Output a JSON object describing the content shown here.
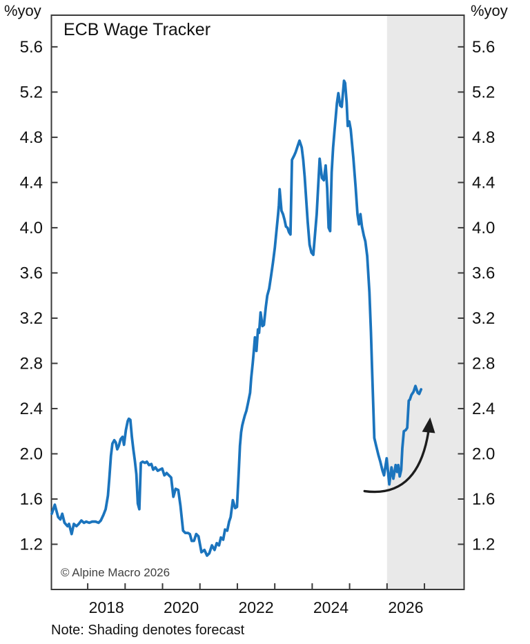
{
  "chart": {
    "y_unit_left": "%yoy",
    "y_unit_right": "%yoy",
    "title": "ECB Wage Tracker",
    "copyright": "© Alpine Macro 2026",
    "note": "Note: Shading denotes forecast",
    "colors": {
      "line": "#1b74bd",
      "forecast_shading": "#e9e9e9",
      "axis": "#3a3a3a",
      "tick_text": "#111111",
      "arrow": "#1d1d1d"
    }
  },
  "chart_data": {
    "type": "line",
    "title": "ECB Wage Tracker",
    "ylabel": "%yoy",
    "legend": "none",
    "grid": false,
    "xlim": [
      2017.03,
      2028.06
    ],
    "ylim": [
      0.8,
      5.88
    ],
    "yticks": [
      1.2,
      1.6,
      2.0,
      2.4,
      2.8,
      3.2,
      3.6,
      4.0,
      4.4,
      4.8,
      5.2,
      5.6
    ],
    "ytick_labels": [
      "1.2",
      "1.6",
      "2.0",
      "2.4",
      "2.8",
      "3.2",
      "3.6",
      "4.0",
      "4.4",
      "4.8",
      "5.2",
      "5.6"
    ],
    "xticks": [
      2018,
      2019,
      2020,
      2021,
      2022,
      2023,
      2024,
      2025,
      2026,
      2027
    ],
    "xtick_labels": [
      {
        "pos": 2018.5,
        "label": "2018"
      },
      {
        "pos": 2020.5,
        "label": "2020"
      },
      {
        "pos": 2022.5,
        "label": "2022"
      },
      {
        "pos": 2024.5,
        "label": "2024"
      },
      {
        "pos": 2026.5,
        "label": "2026"
      }
    ],
    "forecast_shading_start": 2026.0,
    "series": [
      {
        "name": "ECB Wage Tracker",
        "color": "#1b74bd",
        "points": [
          [
            2017.04,
            1.47
          ],
          [
            2017.12,
            1.55
          ],
          [
            2017.21,
            1.44
          ],
          [
            2017.27,
            1.42
          ],
          [
            2017.32,
            1.47
          ],
          [
            2017.38,
            1.39
          ],
          [
            2017.46,
            1.36
          ],
          [
            2017.5,
            1.38
          ],
          [
            2017.57,
            1.29
          ],
          [
            2017.63,
            1.38
          ],
          [
            2017.7,
            1.36
          ],
          [
            2017.76,
            1.38
          ],
          [
            2017.83,
            1.41
          ],
          [
            2017.9,
            1.39
          ],
          [
            2017.96,
            1.4
          ],
          [
            2018.04,
            1.39
          ],
          [
            2018.12,
            1.4
          ],
          [
            2018.21,
            1.4
          ],
          [
            2018.29,
            1.39
          ],
          [
            2018.35,
            1.41
          ],
          [
            2018.42,
            1.46
          ],
          [
            2018.48,
            1.51
          ],
          [
            2018.54,
            1.63
          ],
          [
            2018.58,
            1.79
          ],
          [
            2018.62,
            1.98
          ],
          [
            2018.66,
            2.09
          ],
          [
            2018.71,
            2.12
          ],
          [
            2018.75,
            2.1
          ],
          [
            2018.79,
            2.04
          ],
          [
            2018.83,
            2.07
          ],
          [
            2018.88,
            2.13
          ],
          [
            2018.93,
            2.15
          ],
          [
            2018.97,
            2.08
          ],
          [
            2019.02,
            2.21
          ],
          [
            2019.07,
            2.29
          ],
          [
            2019.1,
            2.31
          ],
          [
            2019.14,
            2.3
          ],
          [
            2019.18,
            2.15
          ],
          [
            2019.22,
            2.04
          ],
          [
            2019.26,
            1.94
          ],
          [
            2019.3,
            1.82
          ],
          [
            2019.34,
            1.56
          ],
          [
            2019.38,
            1.51
          ],
          [
            2019.42,
            1.92
          ],
          [
            2019.47,
            1.93
          ],
          [
            2019.53,
            1.92
          ],
          [
            2019.58,
            1.93
          ],
          [
            2019.64,
            1.9
          ],
          [
            2019.7,
            1.91
          ],
          [
            2019.75,
            1.86
          ],
          [
            2019.81,
            1.88
          ],
          [
            2019.87,
            1.85
          ],
          [
            2019.93,
            1.86
          ],
          [
            2019.99,
            1.87
          ],
          [
            2020.05,
            1.81
          ],
          [
            2020.11,
            1.83
          ],
          [
            2020.17,
            1.81
          ],
          [
            2020.23,
            1.79
          ],
          [
            2020.29,
            1.62
          ],
          [
            2020.35,
            1.69
          ],
          [
            2020.42,
            1.68
          ],
          [
            2020.48,
            1.54
          ],
          [
            2020.55,
            1.32
          ],
          [
            2020.61,
            1.3
          ],
          [
            2020.68,
            1.3
          ],
          [
            2020.73,
            1.29
          ],
          [
            2020.78,
            1.23
          ],
          [
            2020.84,
            1.23
          ],
          [
            2020.9,
            1.29
          ],
          [
            2020.96,
            1.27
          ],
          [
            2021.04,
            1.13
          ],
          [
            2021.12,
            1.15
          ],
          [
            2021.19,
            1.1
          ],
          [
            2021.25,
            1.12
          ],
          [
            2021.32,
            1.19
          ],
          [
            2021.39,
            1.15
          ],
          [
            2021.45,
            1.21
          ],
          [
            2021.51,
            1.19
          ],
          [
            2021.56,
            1.26
          ],
          [
            2021.62,
            1.24
          ],
          [
            2021.67,
            1.33
          ],
          [
            2021.73,
            1.32
          ],
          [
            2021.78,
            1.4
          ],
          [
            2021.82,
            1.44
          ],
          [
            2021.88,
            1.59
          ],
          [
            2021.94,
            1.52
          ],
          [
            2021.99,
            1.53
          ],
          [
            2022.04,
            1.86
          ],
          [
            2022.07,
            2.07
          ],
          [
            2022.1,
            2.19
          ],
          [
            2022.13,
            2.25
          ],
          [
            2022.16,
            2.29
          ],
          [
            2022.2,
            2.34
          ],
          [
            2022.24,
            2.38
          ],
          [
            2022.28,
            2.44
          ],
          [
            2022.34,
            2.54
          ],
          [
            2022.37,
            2.67
          ],
          [
            2022.41,
            2.8
          ],
          [
            2022.44,
            2.91
          ],
          [
            2022.47,
            3.03
          ],
          [
            2022.51,
            2.91
          ],
          [
            2022.55,
            3.1
          ],
          [
            2022.58,
            3.07
          ],
          [
            2022.62,
            3.25
          ],
          [
            2022.67,
            3.13
          ],
          [
            2022.71,
            3.14
          ],
          [
            2022.76,
            3.3
          ],
          [
            2022.8,
            3.4
          ],
          [
            2022.85,
            3.46
          ],
          [
            2022.9,
            3.57
          ],
          [
            2022.95,
            3.69
          ],
          [
            2023.0,
            3.82
          ],
          [
            2023.03,
            3.92
          ],
          [
            2023.06,
            4.02
          ],
          [
            2023.09,
            4.12
          ],
          [
            2023.11,
            4.2
          ],
          [
            2023.13,
            4.34
          ],
          [
            2023.18,
            4.15
          ],
          [
            2023.22,
            4.12
          ],
          [
            2023.26,
            4.07
          ],
          [
            2023.3,
            4.01
          ],
          [
            2023.34,
            4.0
          ],
          [
            2023.38,
            3.96
          ],
          [
            2023.42,
            3.94
          ],
          [
            2023.46,
            4.6
          ],
          [
            2023.52,
            4.64
          ],
          [
            2023.56,
            4.67
          ],
          [
            2023.61,
            4.72
          ],
          [
            2023.66,
            4.77
          ],
          [
            2023.72,
            4.71
          ],
          [
            2023.76,
            4.6
          ],
          [
            2023.8,
            4.45
          ],
          [
            2023.84,
            4.25
          ],
          [
            2023.88,
            4.05
          ],
          [
            2023.93,
            3.85
          ],
          [
            2023.98,
            3.78
          ],
          [
            2024.03,
            3.76
          ],
          [
            2024.12,
            4.12
          ],
          [
            2024.2,
            4.61
          ],
          [
            2024.26,
            4.44
          ],
          [
            2024.31,
            4.42
          ],
          [
            2024.36,
            4.55
          ],
          [
            2024.4,
            4.35
          ],
          [
            2024.44,
            4.0
          ],
          [
            2024.48,
            3.97
          ],
          [
            2024.52,
            4.49
          ],
          [
            2024.56,
            4.71
          ],
          [
            2024.6,
            4.87
          ],
          [
            2024.63,
            4.98
          ],
          [
            2024.66,
            5.1
          ],
          [
            2024.7,
            5.19
          ],
          [
            2024.75,
            5.08
          ],
          [
            2024.79,
            5.07
          ],
          [
            2024.85,
            5.3
          ],
          [
            2024.88,
            5.28
          ],
          [
            2024.92,
            5.11
          ],
          [
            2024.95,
            4.9
          ],
          [
            2024.99,
            4.94
          ],
          [
            2025.03,
            4.87
          ],
          [
            2025.1,
            4.62
          ],
          [
            2025.16,
            4.36
          ],
          [
            2025.21,
            4.12
          ],
          [
            2025.25,
            4.03
          ],
          [
            2025.29,
            4.12
          ],
          [
            2025.33,
            4.01
          ],
          [
            2025.38,
            3.93
          ],
          [
            2025.42,
            3.88
          ],
          [
            2025.47,
            3.75
          ],
          [
            2025.53,
            3.43
          ],
          [
            2025.57,
            3.08
          ],
          [
            2025.6,
            2.76
          ],
          [
            2025.66,
            2.14
          ],
          [
            2025.71,
            2.07
          ],
          [
            2025.77,
            1.99
          ],
          [
            2025.82,
            1.93
          ],
          [
            2025.88,
            1.85
          ],
          [
            2025.92,
            1.81
          ],
          [
            2025.99,
            1.96
          ],
          [
            2026.06,
            1.73
          ],
          [
            2026.12,
            1.88
          ],
          [
            2026.17,
            1.78
          ],
          [
            2026.23,
            1.9
          ],
          [
            2026.27,
            1.84
          ],
          [
            2026.3,
            1.9
          ],
          [
            2026.34,
            1.8
          ],
          [
            2026.38,
            1.86
          ],
          [
            2026.41,
            2.05
          ],
          [
            2026.45,
            2.2
          ],
          [
            2026.5,
            2.21
          ],
          [
            2026.54,
            2.23
          ],
          [
            2026.58,
            2.47
          ],
          [
            2026.61,
            2.48
          ],
          [
            2026.65,
            2.52
          ],
          [
            2026.71,
            2.55
          ],
          [
            2026.76,
            2.6
          ],
          [
            2026.82,
            2.54
          ],
          [
            2026.86,
            2.53
          ],
          [
            2026.91,
            2.57
          ]
        ]
      }
    ],
    "annotation_arrow": {
      "start": [
        2025.4,
        1.67
      ],
      "control": [
        2026.92,
        1.6
      ],
      "end": [
        2027.14,
        2.28
      ]
    }
  }
}
